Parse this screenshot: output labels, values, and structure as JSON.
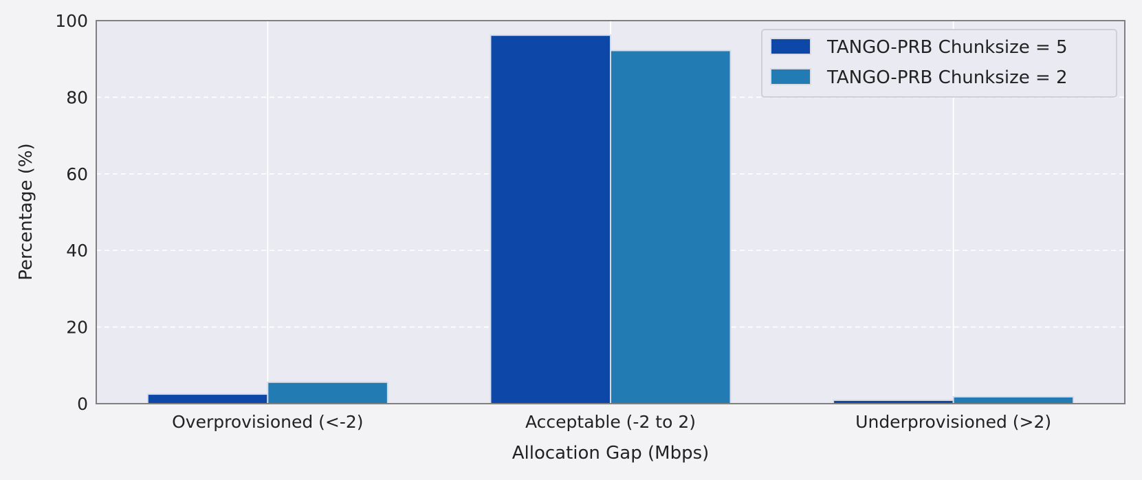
{
  "chart_data": {
    "type": "bar",
    "categories": [
      "Overprovisioned (<-2)",
      "Acceptable (-2 to 2)",
      "Underprovisioned (>2)"
    ],
    "series": [
      {
        "name": "TANGO-PRB Chunksize = 5",
        "values": [
          2.5,
          96.2,
          0.9
        ],
        "color": "#0d47a8"
      },
      {
        "name": "TANGO-PRB Chunksize = 2",
        "values": [
          5.6,
          92.2,
          1.8
        ],
        "color": "#237bb3"
      }
    ],
    "xlabel": "Allocation Gap (Mbps)",
    "ylabel": "Percentage (%)",
    "ylim": [
      0,
      100
    ],
    "yticks": [
      0,
      20,
      40,
      60,
      80,
      100
    ],
    "grid": true,
    "legend_position": "top-right",
    "plot_background": "#eaeaf2"
  }
}
